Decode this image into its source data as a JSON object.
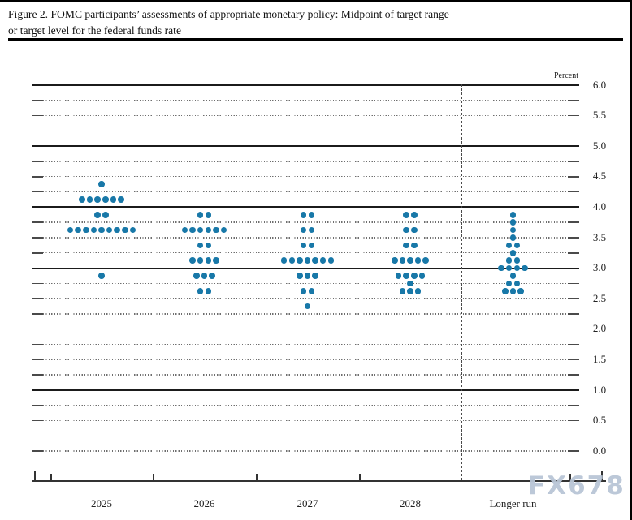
{
  "figure": {
    "title_line1": "Figure 2. FOMC participants’ assessments of appropriate monetary policy: Midpoint of target range",
    "title_line2": "or target level for the federal funds rate"
  },
  "watermark": {
    "text": "FX678",
    "color": "#b9c6d6"
  },
  "chart_data": {
    "type": "scatter",
    "subtype": "fomc-dot-plot",
    "title": "FOMC participants’ assessments of appropriate monetary policy: Midpoint of target range or target level for the federal funds rate",
    "ylabel": "Percent",
    "dot_color": "#1878a8",
    "y_axis": {
      "min": 0.0,
      "max": 6.0,
      "grid_step": 0.25,
      "label_step": 0.5,
      "solid_lines": [
        6.0,
        5.0,
        4.0,
        3.0,
        2.0,
        1.0
      ],
      "tick_labels": [
        "6.0",
        "5.5",
        "5.0",
        "4.5",
        "4.0",
        "3.5",
        "3.0",
        "2.5",
        "2.0",
        "1.5",
        "1.0",
        "0.5",
        "0.0"
      ]
    },
    "categories": [
      "2025",
      "2026",
      "2027",
      "2028",
      "Longer run"
    ],
    "separator_before_category": "Longer run",
    "series": [
      {
        "name": "2025",
        "dots": [
          {
            "value": 4.375,
            "count": 1
          },
          {
            "value": 4.125,
            "count": 6
          },
          {
            "value": 3.875,
            "count": 2
          },
          {
            "value": 3.625,
            "count": 9
          },
          {
            "value": 2.875,
            "count": 1
          }
        ]
      },
      {
        "name": "2026",
        "dots": [
          {
            "value": 3.875,
            "count": 2
          },
          {
            "value": 3.625,
            "count": 6
          },
          {
            "value": 3.375,
            "count": 2
          },
          {
            "value": 3.125,
            "count": 4
          },
          {
            "value": 2.875,
            "count": 3
          },
          {
            "value": 2.625,
            "count": 2
          }
        ]
      },
      {
        "name": "2027",
        "dots": [
          {
            "value": 3.875,
            "count": 2
          },
          {
            "value": 3.625,
            "count": 2
          },
          {
            "value": 3.375,
            "count": 2
          },
          {
            "value": 3.125,
            "count": 7
          },
          {
            "value": 2.875,
            "count": 3
          },
          {
            "value": 2.625,
            "count": 2
          },
          {
            "value": 2.375,
            "count": 1
          }
        ]
      },
      {
        "name": "2028",
        "dots": [
          {
            "value": 3.875,
            "count": 2
          },
          {
            "value": 3.625,
            "count": 2
          },
          {
            "value": 3.375,
            "count": 2
          },
          {
            "value": 3.125,
            "count": 5
          },
          {
            "value": 2.875,
            "count": 4
          },
          {
            "value": 2.75,
            "count": 1
          },
          {
            "value": 2.625,
            "count": 3
          }
        ]
      },
      {
        "name": "Longer run",
        "dots": [
          {
            "value": 3.875,
            "count": 1
          },
          {
            "value": 3.75,
            "count": 1
          },
          {
            "value": 3.625,
            "count": 1
          },
          {
            "value": 3.5,
            "count": 1
          },
          {
            "value": 3.375,
            "count": 2
          },
          {
            "value": 3.25,
            "count": 1
          },
          {
            "value": 3.125,
            "count": 2
          },
          {
            "value": 3.0,
            "count": 4
          },
          {
            "value": 2.875,
            "count": 1
          },
          {
            "value": 2.75,
            "count": 2
          },
          {
            "value": 2.625,
            "count": 3
          }
        ]
      }
    ]
  }
}
